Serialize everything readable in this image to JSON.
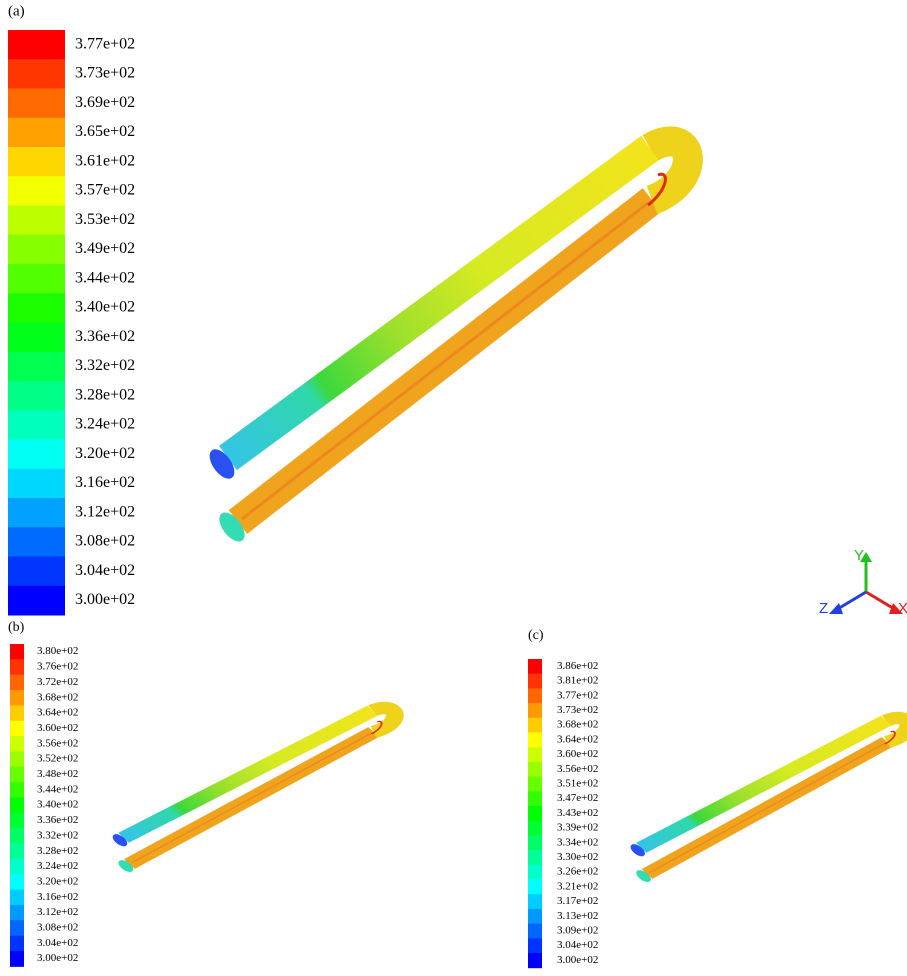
{
  "panels": [
    {
      "label": "(a)",
      "colorbar": [
        "3.77e+02",
        "3.73e+02",
        "3.69e+02",
        "3.65e+02",
        "3.61e+02",
        "3.57e+02",
        "3.53e+02",
        "3.49e+02",
        "3.44e+02",
        "3.40e+02",
        "3.36e+02",
        "3.32e+02",
        "3.28e+02",
        "3.24e+02",
        "3.20e+02",
        "3.16e+02",
        "3.12e+02",
        "3.08e+02",
        "3.04e+02",
        "3.00e+02"
      ]
    },
    {
      "label": "(b)",
      "colorbar": [
        "3.80e+02",
        "3.76e+02",
        "3.72e+02",
        "3.68e+02",
        "3.64e+02",
        "3.60e+02",
        "3.56e+02",
        "3.52e+02",
        "3.48e+02",
        "3.44e+02",
        "3.40e+02",
        "3.36e+02",
        "3.32e+02",
        "3.28e+02",
        "3.24e+02",
        "3.20e+02",
        "3.16e+02",
        "3.12e+02",
        "3.08e+02",
        "3.04e+02",
        "3.00e+02"
      ]
    },
    {
      "label": "(c)",
      "colorbar": [
        "3.86e+02",
        "3.81e+02",
        "3.77e+02",
        "3.73e+02",
        "3.68e+02",
        "3.64e+02",
        "3.60e+02",
        "3.56e+02",
        "3.51e+02",
        "3.47e+02",
        "3.43e+02",
        "3.39e+02",
        "3.34e+02",
        "3.30e+02",
        "3.26e+02",
        "3.21e+02",
        "3.17e+02",
        "3.13e+02",
        "3.09e+02",
        "3.04e+02",
        "3.00e+02"
      ]
    }
  ],
  "triad": {
    "y": "Y",
    "z": "Z",
    "x": "X"
  }
}
